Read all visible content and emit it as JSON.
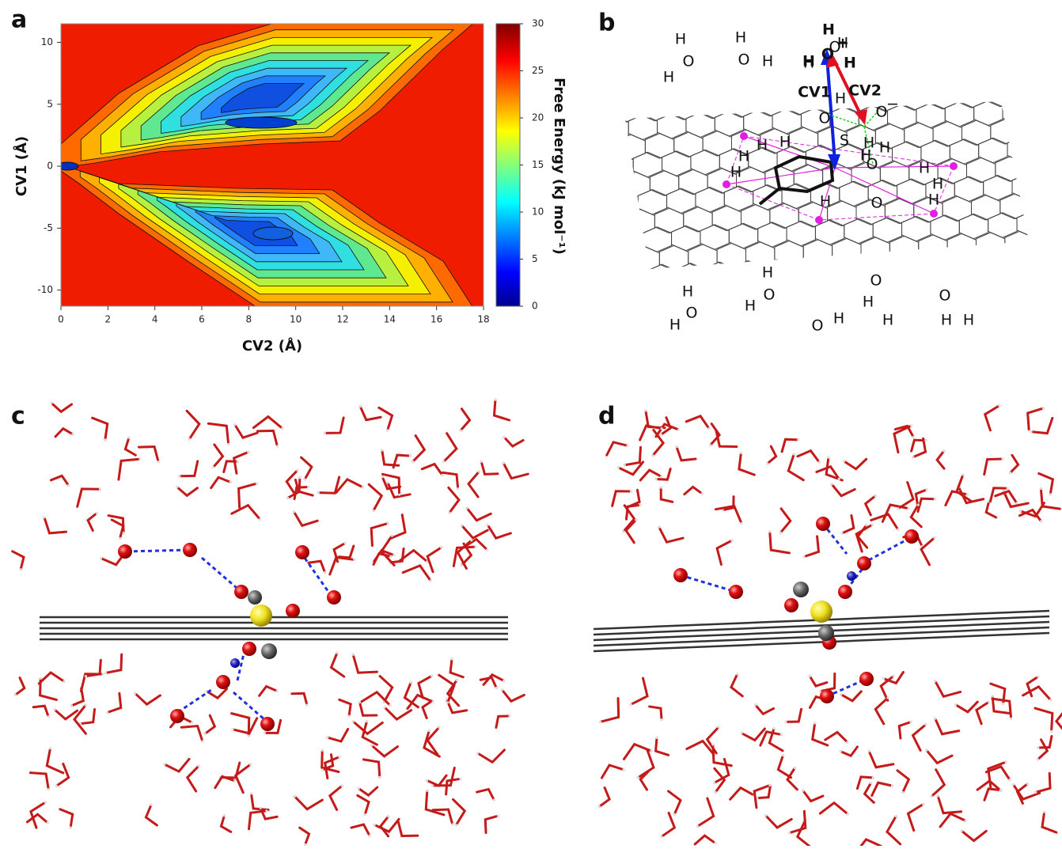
{
  "chart_data": {
    "type": "contour",
    "panel_label": "a",
    "xlabel": "CV2 (Å)",
    "ylabel": "CV1 (Å)",
    "xlim": [
      0,
      18
    ],
    "ylim": [
      -11.3,
      11.5
    ],
    "xticks": [
      0,
      2,
      4,
      6,
      8,
      10,
      12,
      14,
      16,
      18
    ],
    "yticks": [
      -10,
      -5,
      0,
      5,
      10
    ],
    "colorbar": {
      "label": "Free Energy (kJ mol⁻¹)",
      "lim": [
        0,
        30
      ],
      "ticks": [
        0,
        5,
        10,
        15,
        20,
        25,
        30
      ]
    }
  },
  "diagram": {
    "panel_label": "b",
    "labels": [
      "H",
      "O",
      "H",
      "H",
      "O",
      "H",
      "H",
      "O",
      "H",
      "O",
      "H",
      "H",
      "+",
      "H",
      "H",
      "O",
      "CV1",
      "CV2",
      "O",
      "O",
      "S",
      "O",
      "−",
      "H",
      "H",
      "H",
      "H",
      "H",
      "H",
      "H",
      "H",
      "H",
      "H",
      "H",
      "O",
      "H",
      "H",
      "O",
      "H",
      "H",
      "O",
      "H",
      "O",
      "H",
      "H",
      "O",
      "H",
      "H",
      "O",
      "H"
    ]
  },
  "panels": [
    {
      "label": "c"
    },
    {
      "label": "d"
    }
  ]
}
